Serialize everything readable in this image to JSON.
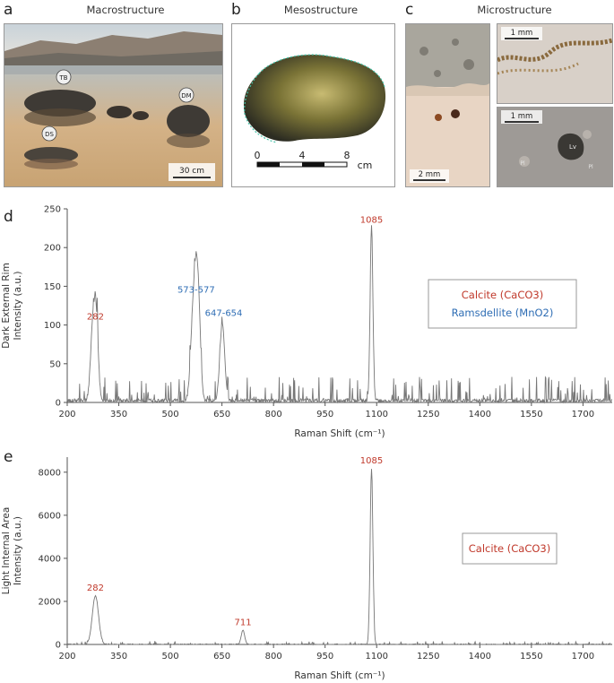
{
  "panels": {
    "a": {
      "letter": "a",
      "title": "Macrostructure",
      "scalebar": "30 cm",
      "labels": [
        "TB",
        "DM",
        "DS"
      ]
    },
    "b": {
      "letter": "b",
      "title": "Mesostructure",
      "scale_ticks": [
        "0",
        "4",
        "8"
      ],
      "scale_unit": "cm"
    },
    "c": {
      "letter": "c",
      "title": "Microstructure",
      "scalebars": [
        "2 mm",
        "1 mm",
        "1 mm"
      ],
      "micro_labels": [
        "Lv",
        "Pl",
        "Pl"
      ]
    },
    "d": {
      "letter": "d"
    },
    "e": {
      "letter": "e"
    }
  },
  "chart_data": [
    {
      "type": "line",
      "ylabel_outer": "Dark External Rim",
      "ylabel": "Intensity (a.u.)",
      "xlabel": "Raman Shift (cm⁻¹)",
      "xlim": [
        200,
        1785
      ],
      "ylim": [
        0,
        250
      ],
      "xticks": [
        "200",
        "350",
        "500",
        "650",
        "800",
        "950",
        "1100",
        "1250",
        "1400",
        "1550",
        "1700"
      ],
      "yticks": [
        "0",
        "50",
        "100",
        "150",
        "200",
        "250"
      ],
      "legend": [
        "Calcite (CaCO3)",
        "Ramsdellite (MnO2)"
      ],
      "legend_colors": [
        "#c0392b",
        "#2e6db4"
      ],
      "peak_labels": [
        {
          "text": "282",
          "x": 282,
          "y": 100,
          "color": "#c0392b"
        },
        {
          "text": "573-577",
          "x": 575,
          "y": 135,
          "color": "#2e6db4"
        },
        {
          "text": "647-654",
          "x": 655,
          "y": 105,
          "color": "#2e6db4"
        },
        {
          "text": "1085",
          "x": 1085,
          "y": 225,
          "color": "#c0392b"
        }
      ],
      "peaks": [
        {
          "center": 275,
          "height": 95,
          "width": 7
        },
        {
          "center": 285,
          "height": 85,
          "width": 6
        },
        {
          "center": 568,
          "height": 125,
          "width": 8
        },
        {
          "center": 580,
          "height": 132,
          "width": 7
        },
        {
          "center": 651,
          "height": 100,
          "width": 7
        },
        {
          "center": 1085,
          "height": 225,
          "width": 4
        }
      ],
      "noise": 15
    },
    {
      "type": "line",
      "ylabel_outer": "Light Internal Area",
      "ylabel": "Intensity (a.u.)",
      "xlabel": "Raman Shift (cm⁻¹)",
      "xlim": [
        200,
        1785
      ],
      "ylim": [
        0,
        8700
      ],
      "xticks": [
        "200",
        "350",
        "500",
        "650",
        "800",
        "950",
        "1100",
        "1250",
        "1400",
        "1550",
        "1700"
      ],
      "yticks": [
        "0",
        "2000",
        "4000",
        "6000",
        "8000"
      ],
      "legend": [
        "Calcite (CaCO3)"
      ],
      "legend_colors": [
        "#c0392b"
      ],
      "peak_labels": [
        {
          "text": "282",
          "x": 282,
          "y": 2250,
          "color": "#c0392b"
        },
        {
          "text": "711",
          "x": 711,
          "y": 650,
          "color": "#c0392b"
        },
        {
          "text": "1085",
          "x": 1085,
          "y": 8150,
          "color": "#c0392b"
        }
      ],
      "peaks": [
        {
          "center": 282,
          "height": 2250,
          "width": 9
        },
        {
          "center": 711,
          "height": 650,
          "width": 5
        },
        {
          "center": 1085,
          "height": 8150,
          "width": 4
        }
      ],
      "noise": 60
    }
  ]
}
